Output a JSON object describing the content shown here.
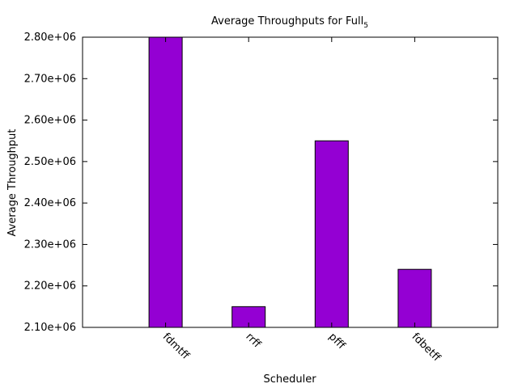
{
  "chart_data": {
    "type": "bar",
    "title_main": "Average Throughputs for Full",
    "title_sub": "5",
    "xlabel": "Scheduler",
    "ylabel": "Average Throughput",
    "categories": [
      "fdmtff",
      "rrff",
      "pfff",
      "fdbetff"
    ],
    "values": [
      2800000,
      2150000,
      2550000,
      2240000
    ],
    "ylim": [
      2100000,
      2800000
    ],
    "yticks": [
      2100000,
      2200000,
      2300000,
      2400000,
      2500000,
      2600000,
      2700000,
      2800000
    ],
    "ytick_labels": [
      "2.10e+06",
      "2.20e+06",
      "2.30e+06",
      "2.40e+06",
      "2.50e+06",
      "2.60e+06",
      "2.70e+06",
      "2.80e+06"
    ],
    "bar_color": "#9400d3",
    "grid": false,
    "legend": "none"
  }
}
